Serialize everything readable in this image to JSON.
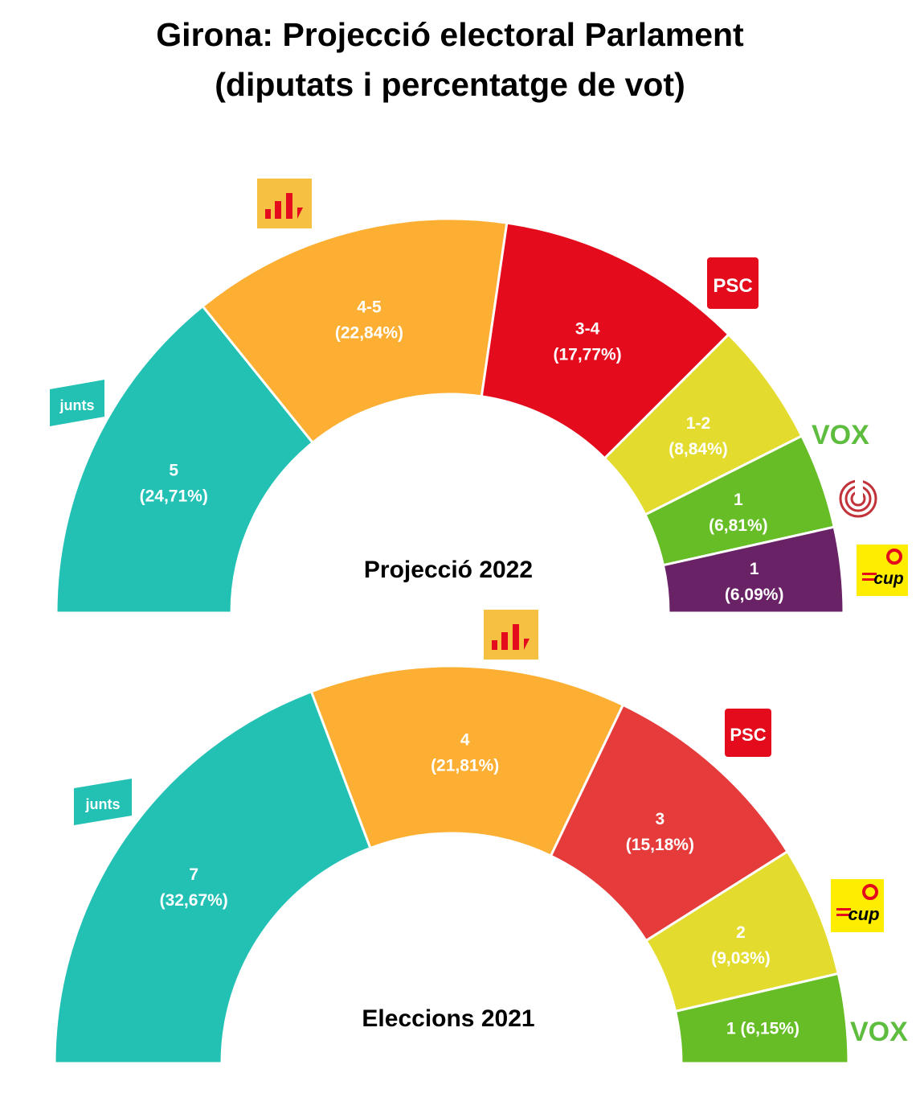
{
  "title_line1": "Girona: Projecció electoral Parlament",
  "title_line2": "(diputats i percentatge de vot)",
  "logo_text": {
    "junts": "junts",
    "psc": "PSC",
    "vox": "VOX",
    "cup": "cup"
  },
  "chart_data": [
    {
      "type": "pie",
      "variant": "semicircle",
      "center_label": "Projecció 2022",
      "slices": [
        {
          "party": "junts",
          "label": "5",
          "percent": 24.71,
          "percent_label": "(24,71%)",
          "color": "#22c1b4"
        },
        {
          "party": "erc",
          "label": "4-5",
          "percent": 22.84,
          "percent_label": "(22,84%)",
          "color": "#fcaf32"
        },
        {
          "party": "psc",
          "label": "3-4",
          "percent": 17.77,
          "percent_label": "(17,77%)",
          "color": "#e30b1c"
        },
        {
          "party": "vox",
          "label": "1-2",
          "percent": 8.84,
          "percent_label": "(8,84%)",
          "color": "#e3dc2f"
        },
        {
          "party": "cs",
          "label": "1",
          "percent": 6.81,
          "percent_label": "(6,81%)",
          "color": "#66bd26"
        },
        {
          "party": "cup",
          "label": "1",
          "percent": 6.09,
          "percent_label": "(6,09%)",
          "color": "#6a2266"
        }
      ]
    },
    {
      "type": "pie",
      "variant": "semicircle",
      "center_label": "Eleccions 2021",
      "slices": [
        {
          "party": "junts",
          "label": "7",
          "percent": 32.67,
          "percent_label": "(32,67%)",
          "color": "#22c1b4"
        },
        {
          "party": "erc",
          "label": "4",
          "percent": 21.81,
          "percent_label": "(21,81%)",
          "color": "#fcaf32"
        },
        {
          "party": "psc",
          "label": "3",
          "percent": 15.18,
          "percent_label": "(15,18%)",
          "color": "#e63b3b"
        },
        {
          "party": "cup",
          "label": "2",
          "percent": 9.03,
          "percent_label": "(9,03%)",
          "color": "#e3dc2f"
        },
        {
          "party": "vox",
          "label": "1 (6,15%)",
          "percent": 6.15,
          "percent_label": "",
          "color": "#66bd26"
        }
      ]
    }
  ]
}
